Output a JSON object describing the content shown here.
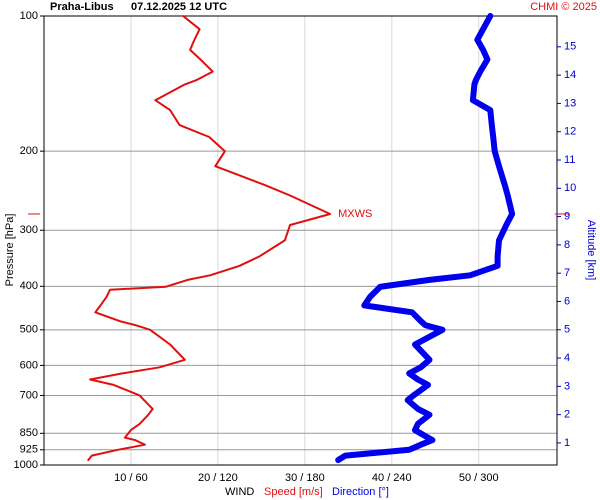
{
  "chart_data": {
    "type": "line",
    "title": "Praha-Libus",
    "subtitle": "07.12.2025 12 UTC",
    "credit": "CHMI © 2025",
    "ylabel": "Pressure [hPa]",
    "y2label": "Altitude [km]",
    "xlabel": "WIND",
    "annotation": "MXWS",
    "log_y": true,
    "grid": true,
    "y": [
      100,
      107,
      113,
      119,
      125,
      133,
      139,
      142,
      154,
      162,
      175,
      186,
      200,
      216,
      238,
      251,
      276,
      292,
      316,
      343,
      360,
      378,
      387,
      401,
      407,
      422,
      441,
      457,
      478,
      488,
      500,
      539,
      583,
      606,
      625,
      645,
      663,
      700,
      717,
      750,
      773,
      810,
      836,
      869,
      880,
      901,
      925,
      953,
      975
    ],
    "series": [
      {
        "name": "Speed [m/s]",
        "color": "#e01010",
        "axis": "x",
        "values": [
          16.0,
          17.9,
          17.3,
          16.8,
          18.0,
          19.4,
          17.5,
          16.2,
          12.8,
          14.5,
          15.6,
          19.0,
          20.8,
          19.7,
          25.4,
          28.3,
          32.9,
          28.3,
          27.7,
          24.8,
          22.5,
          19.1,
          16.5,
          14.0,
          7.6,
          7.2,
          6.5,
          5.9,
          8.7,
          10.5,
          12.2,
          14.5,
          16.2,
          13.3,
          9.0,
          5.3,
          8.0,
          11.0,
          11.5,
          12.5,
          12.0,
          11.0,
          10.0,
          9.3,
          10.5,
          11.6,
          8.5,
          5.5,
          5.1
        ]
      },
      {
        "name": "Direction [°]",
        "color": "#0000ee",
        "axis": "x2",
        "values": [
          308,
          303,
          299,
          303,
          306,
          301,
          298,
          297,
          296,
          308,
          309,
          310,
          311,
          314,
          318,
          320,
          323,
          319,
          314,
          313,
          313,
          294,
          266,
          232,
          230,
          225,
          221,
          254,
          260,
          263,
          275,
          256,
          266,
          260,
          252,
          258,
          265,
          255,
          251,
          258,
          266,
          258,
          256,
          265,
          268,
          260,
          252,
          208,
          203
        ]
      }
    ],
    "xlim": [
      0,
      59
    ],
    "x2lim": [
      0,
      354
    ],
    "xticks": [
      {
        "value": 10,
        "label": "10 / 60"
      },
      {
        "value": 20,
        "label": "20 / 120"
      },
      {
        "value": 30,
        "label": "30 / 180"
      },
      {
        "value": 40,
        "label": "40 / 240"
      },
      {
        "value": 50,
        "label": "50 / 300"
      }
    ],
    "ylim": [
      1000,
      100
    ],
    "yticks": [
      100,
      200,
      300,
      400,
      500,
      600,
      700,
      850,
      925,
      1000
    ],
    "y2lim": [
      0.22,
      16.09
    ],
    "y2ticks": [
      1,
      2,
      3,
      4,
      5,
      6,
      7,
      8,
      9,
      10,
      11,
      12,
      13,
      14,
      15
    ]
  }
}
